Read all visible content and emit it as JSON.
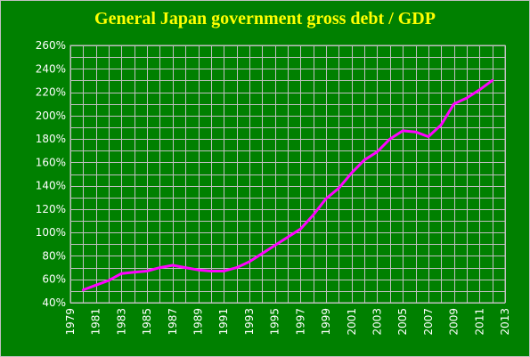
{
  "chart_data": {
    "type": "line",
    "title": "General Japan government gross debt / GDP",
    "xlabel": "",
    "ylabel": "",
    "xlim": [
      1979,
      2013
    ],
    "ylim": [
      40,
      260
    ],
    "y_ticks": [
      40,
      60,
      80,
      100,
      120,
      140,
      160,
      180,
      200,
      220,
      240,
      260
    ],
    "y_tick_labels": [
      "40%",
      "60%",
      "80%",
      "100%",
      "120%",
      "140%",
      "160%",
      "180%",
      "200%",
      "220%",
      "240%",
      "260%"
    ],
    "x_ticks": [
      1979,
      1981,
      1983,
      1985,
      1987,
      1989,
      1991,
      1993,
      1995,
      1997,
      1999,
      2001,
      2003,
      2005,
      2007,
      2009,
      2011,
      2013
    ],
    "x_tick_labels": [
      "1979",
      "1981",
      "1983",
      "1985",
      "1987",
      "1989",
      "1991",
      "1993",
      "1995",
      "1997",
      "1999",
      "2001",
      "2003",
      "2005",
      "2007",
      "2009",
      "2011",
      "2013"
    ],
    "grid": true,
    "series": [
      {
        "name": "",
        "x": [
          1980,
          1981,
          1982,
          1983,
          1984,
          1985,
          1986,
          1987,
          1988,
          1989,
          1990,
          1991,
          1992,
          1993,
          1994,
          1995,
          1996,
          1997,
          1998,
          1999,
          2000,
          2001,
          2002,
          2003,
          2004,
          2005,
          2006,
          2007,
          2008,
          2009,
          2010,
          2011,
          2012
        ],
        "values": [
          51,
          55,
          59,
          65,
          66,
          67,
          70,
          72,
          70,
          68,
          67,
          67,
          70,
          75,
          82,
          89,
          96,
          103,
          115,
          129,
          138,
          151,
          162,
          169,
          180,
          187,
          186,
          182,
          192,
          210,
          215,
          222,
          230
        ]
      }
    ]
  },
  "colors": {
    "background": "#000000",
    "plot_area": "#008000",
    "grid": "#c0c0c0",
    "line": "#ff00ff",
    "title": "#ffff00",
    "tick_labels": "#ffffff"
  }
}
